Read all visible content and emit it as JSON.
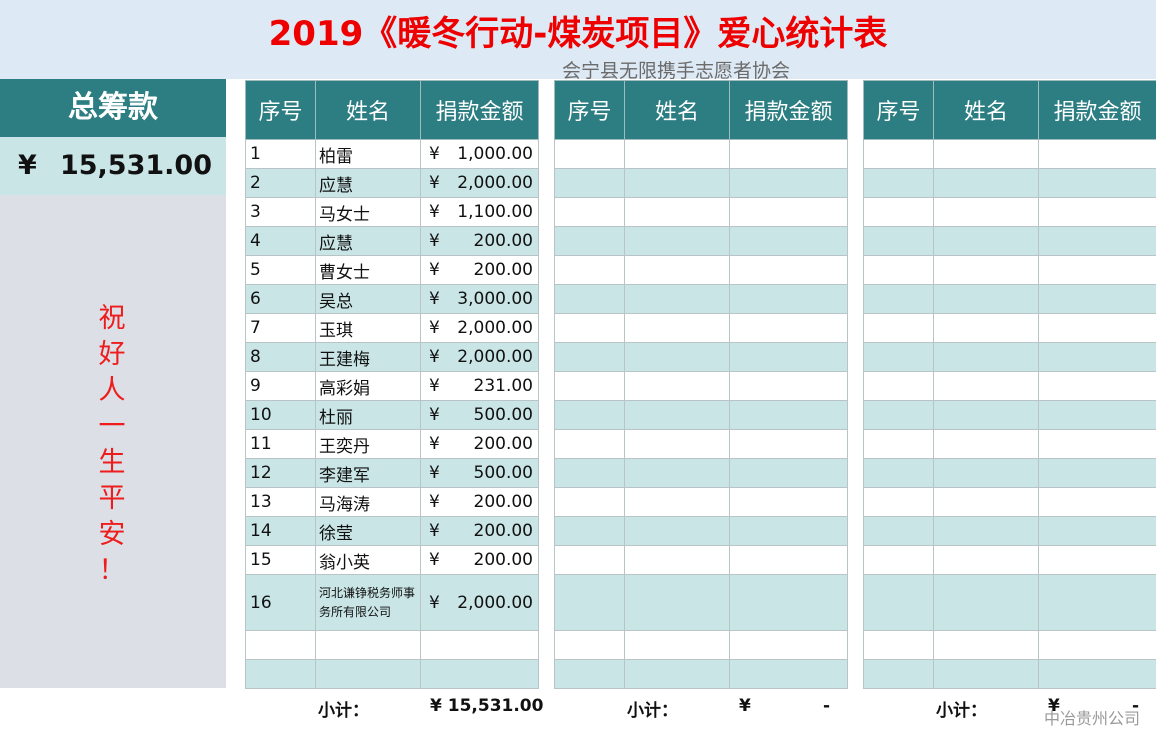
{
  "header": {
    "title": "2019《暖冬行动-煤炭项目》爱心统计表",
    "subtitle": "会宁县无限携手志愿者协会"
  },
  "summary": {
    "label": "总筹款",
    "currency": "¥",
    "total": "15,531.00",
    "blessing": [
      "祝",
      "好",
      "人",
      "一",
      "生",
      "平",
      "安",
      "！"
    ]
  },
  "columns": {
    "seq": "序号",
    "name": "姓名",
    "amount": "捐款金额"
  },
  "table1": {
    "rows": [
      {
        "seq": "1",
        "name": "柏雷",
        "cur": "¥",
        "amount": "1,000.00"
      },
      {
        "seq": "2",
        "name": "应慧",
        "cur": "¥",
        "amount": "2,000.00"
      },
      {
        "seq": "3",
        "name": "马女士",
        "cur": "¥",
        "amount": "1,100.00"
      },
      {
        "seq": "4",
        "name": "应慧",
        "cur": "¥",
        "amount": "200.00"
      },
      {
        "seq": "5",
        "name": "曹女士",
        "cur": "¥",
        "amount": "200.00"
      },
      {
        "seq": "6",
        "name": "吴总",
        "cur": "¥",
        "amount": "3,000.00"
      },
      {
        "seq": "7",
        "name": "玉琪",
        "cur": "¥",
        "amount": "2,000.00"
      },
      {
        "seq": "8",
        "name": "王建梅",
        "cur": "¥",
        "amount": "2,000.00"
      },
      {
        "seq": "9",
        "name": "高彩娟",
        "cur": "¥",
        "amount": "231.00"
      },
      {
        "seq": "10",
        "name": "杜丽",
        "cur": "¥",
        "amount": "500.00"
      },
      {
        "seq": "11",
        "name": "王奕丹",
        "cur": "¥",
        "amount": "200.00"
      },
      {
        "seq": "12",
        "name": "李建军",
        "cur": "¥",
        "amount": "500.00"
      },
      {
        "seq": "13",
        "name": "马海涛",
        "cur": "¥",
        "amount": "200.00"
      },
      {
        "seq": "14",
        "name": "徐莹",
        "cur": "¥",
        "amount": "200.00"
      },
      {
        "seq": "15",
        "name": "翁小英",
        "cur": "¥",
        "amount": "200.00"
      },
      {
        "seq": "16",
        "name": "河北谦铮税务师事务所有限公司",
        "cur": "¥",
        "amount": "2,000.00"
      }
    ],
    "subtotal_label": "小计：",
    "subtotal_value": "¥ 15,531.00"
  },
  "table2": {
    "subtotal_label": "小计：",
    "subtotal_currency": "¥",
    "subtotal_value": "-"
  },
  "table3": {
    "subtotal_label": "小计：",
    "subtotal_currency": "¥",
    "subtotal_value": "-"
  },
  "watermark": "中冶贵州公司"
}
